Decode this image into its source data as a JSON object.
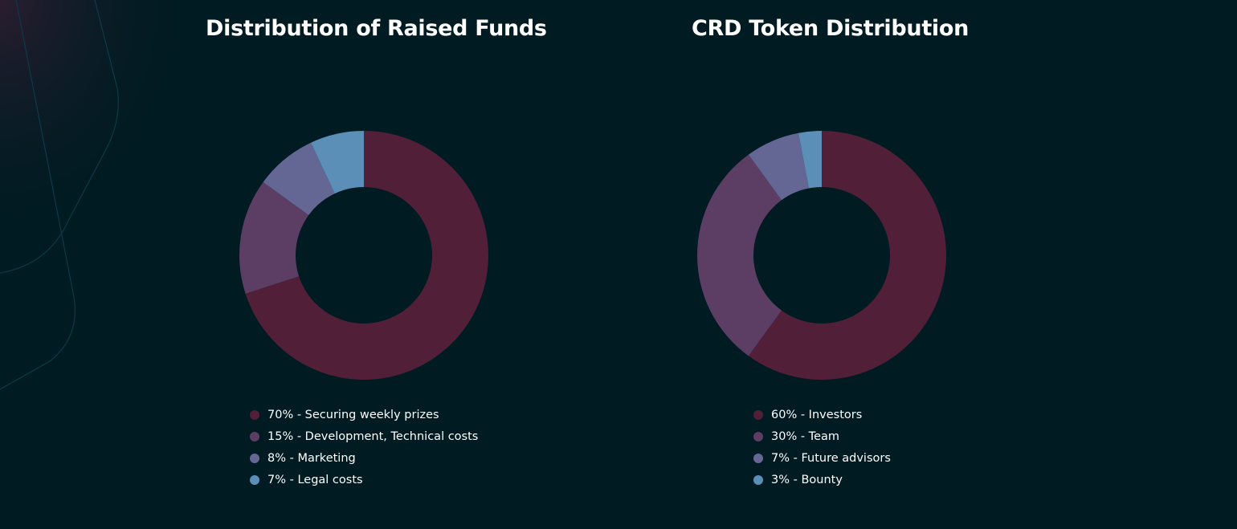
{
  "colors": {
    "background": "#001b22",
    "decoration_line": "#0c3a48",
    "text": "#ffffff"
  },
  "chart_data": [
    {
      "type": "pie",
      "style": "donut",
      "title": "Distribution of Raised Funds",
      "slices": [
        {
          "value": 70,
          "label": "70% - Securing weekly prizes",
          "color": "#511f38"
        },
        {
          "value": 15,
          "label": "15% - Development, Technical costs",
          "color": "#5c3e64"
        },
        {
          "value": 8,
          "label": "8% - Marketing",
          "color": "#646693"
        },
        {
          "value": 7,
          "label": "7% - Legal costs",
          "color": "#5b8fb8"
        }
      ],
      "legend_position": "bottom"
    },
    {
      "type": "pie",
      "style": "donut",
      "title": "CRD Token Distribution",
      "slices": [
        {
          "value": 60,
          "label": "60% - Investors",
          "color": "#511f38"
        },
        {
          "value": 30,
          "label": "30% - Team",
          "color": "#5c3e64"
        },
        {
          "value": 7,
          "label": "7% - Future advisors",
          "color": "#646693"
        },
        {
          "value": 3,
          "label": "3% - Bounty",
          "color": "#5b8fb8"
        }
      ],
      "legend_position": "bottom"
    }
  ]
}
